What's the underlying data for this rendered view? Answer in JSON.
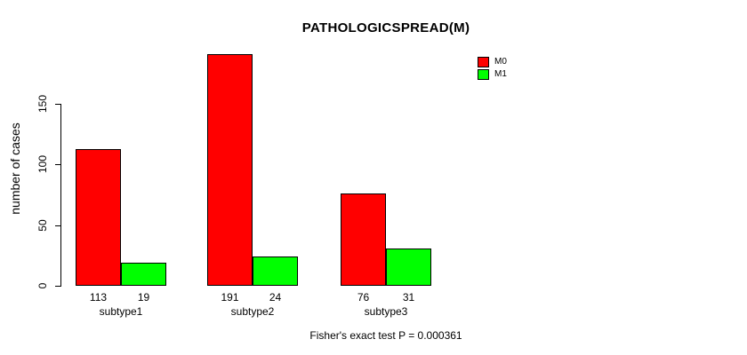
{
  "chart_data": {
    "type": "bar",
    "title": "PATHOLOGICSPREAD(M)",
    "ylabel": "number of cases",
    "xlabel": "",
    "categories": [
      "subtype1",
      "subtype2",
      "subtype3"
    ],
    "series": [
      {
        "name": "M0",
        "color": "#FF0000",
        "values": [
          113,
          191,
          76
        ]
      },
      {
        "name": "M1",
        "color": "#00FF00",
        "values": [
          19,
          24,
          31
        ]
      }
    ],
    "yticks": [
      0,
      50,
      100,
      150
    ],
    "ylim": [
      0,
      150
    ],
    "grid": false,
    "bar_value_labels_shown": true,
    "legend_position": "top-right",
    "footer": "Fisher's exact test P = 0.000361",
    "colors": {
      "m0": "#FF0000",
      "m1": "#00FF00",
      "axis": "#000000",
      "background": "#FFFFFF"
    }
  }
}
